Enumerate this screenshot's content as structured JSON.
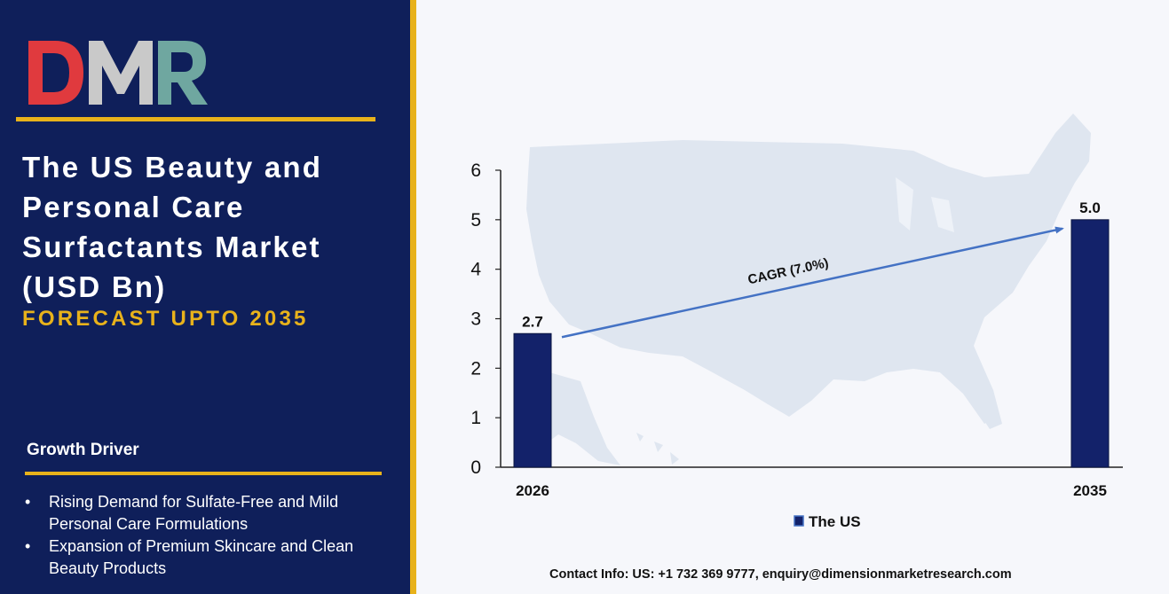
{
  "brand": {
    "logo_text": "DMR",
    "colors": {
      "logo_red": "#e03a3e",
      "logo_gray": "#c9c9c9",
      "logo_teal": "#6fa7a0",
      "navy": "#0f1f5a",
      "gold": "#e8b21b",
      "bar": "#13226a",
      "arrow": "#4472c4"
    }
  },
  "panel": {
    "title": "The US Beauty and Personal Care Surfactants Market (USD Bn)",
    "subtitle": "FORECAST UPTO 2035",
    "growth_heading": "Growth Driver",
    "bullet_symbol": "•",
    "drivers": [
      "Rising Demand for Sulfate-Free and Mild Personal Care Formulations",
      "Expansion of Premium Skincare and Clean Beauty Products"
    ]
  },
  "chart_data": {
    "type": "bar",
    "categories": [
      "2026",
      "2035"
    ],
    "series": [
      {
        "name": "The US",
        "values": [
          2.7,
          5.0
        ]
      }
    ],
    "data_labels": [
      "2.7",
      "5.0"
    ],
    "ylim": [
      0,
      6
    ],
    "yticks": [
      0,
      1,
      2,
      3,
      4,
      5,
      6
    ],
    "annotation": "CAGR (7.0%)",
    "legend_position": "bottom-center",
    "grid": false,
    "background": "map of the United States"
  },
  "footer": {
    "contact": "Contact Info: US: +1 732 369 9777, enquiry@dimensionmarketresearch.com"
  }
}
